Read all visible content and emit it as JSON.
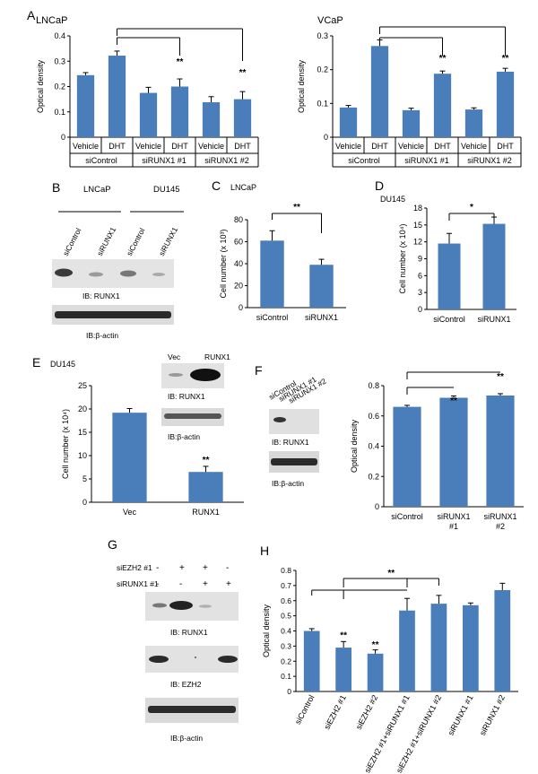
{
  "panels": {
    "A": {
      "letter": "A",
      "left": {
        "title": "LNCaP",
        "ylabel": "Optical density",
        "ylim": [
          0,
          0.4
        ],
        "yticks": [
          "0",
          "0.1",
          "0.2",
          "0.3",
          "0.4"
        ],
        "bars": [
          0.245,
          0.322,
          0.175,
          0.2,
          0.138,
          0.15
        ],
        "errors": [
          0.01,
          0.018,
          0.022,
          0.03,
          0.022,
          0.03
        ],
        "xlabels": [
          "Vehicle",
          "DHT",
          "Vehicle",
          "DHT",
          "Vehicle",
          "DHT"
        ],
        "groups": [
          "siControl",
          "siRUNX1 #1",
          "siRUNX1 #2"
        ],
        "sig": [
          "**",
          "**"
        ]
      },
      "right": {
        "title": "VCaP",
        "ylabel": "Optical density",
        "ylim": [
          0,
          0.3
        ],
        "yticks": [
          "0",
          "0.1",
          "0.2",
          "0.3"
        ],
        "bars": [
          0.088,
          0.27,
          0.08,
          0.188,
          0.082,
          0.194
        ],
        "errors": [
          0.006,
          0.018,
          0.006,
          0.008,
          0.005,
          0.01
        ],
        "xlabels": [
          "Vehicle",
          "DHT",
          "Vehicle",
          "DHT",
          "Vehicle",
          "DHT"
        ],
        "groups": [
          "siControl",
          "siRUNX1 #1",
          "siRUNX1 #2"
        ],
        "sig": [
          "**",
          "**"
        ]
      }
    },
    "B": {
      "letter": "B",
      "cell_lines": [
        "LNCaP",
        "DU145"
      ],
      "lanes": [
        "siControl",
        "siRUNX1",
        "siControl",
        "siRUNX1"
      ],
      "ib1": "IB: RUNX1",
      "ib2": "IB:β-actin"
    },
    "C": {
      "letter": "C",
      "title": "LNCaP",
      "ylabel": "Cell number (x 10³)",
      "ylim": [
        0,
        80
      ],
      "yticks": [
        "0",
        "20",
        "40",
        "60",
        "80"
      ],
      "categories": [
        "siControl",
        "siRUNX1"
      ],
      "bars": [
        61,
        39
      ],
      "errors": [
        9,
        5
      ],
      "sig": "**"
    },
    "D": {
      "letter": "D",
      "title": "DU145",
      "ylabel": "Cell number (x 10⁴)",
      "ylim": [
        0,
        18
      ],
      "yticks": [
        "0",
        "3",
        "6",
        "9",
        "12",
        "15",
        "18"
      ],
      "categories": [
        "siControl",
        "siRUNX1"
      ],
      "bars": [
        11.7,
        15.2
      ],
      "errors": [
        1.8,
        1.2
      ],
      "sig": "*"
    },
    "E": {
      "letter": "E",
      "title": "DU145",
      "ylabel": "Cell number (x 10⁴)",
      "ylim": [
        0,
        25
      ],
      "yticks": [
        "0",
        "5",
        "10",
        "15",
        "20",
        "25"
      ],
      "categories": [
        "Vec",
        "RUNX1"
      ],
      "bars": [
        19.2,
        6.5
      ],
      "errors": [
        0.9,
        1.2
      ],
      "sig": "**",
      "blot_lanes": [
        "Vec",
        "RUNX1"
      ],
      "ib1": "IB: RUNX1",
      "ib2": "IB:β-actin"
    },
    "F": {
      "letter": "F",
      "lanes": [
        "siControl",
        "siRUNX1 #1",
        "siRUNX1 #2"
      ],
      "ib1": "IB: RUNX1",
      "ib2": "IB:β-actin",
      "ylabel": "Optical density",
      "ylim": [
        0,
        0.8
      ],
      "yticks": [
        "0",
        "0.2",
        "0.4",
        "0.6",
        "0.8"
      ],
      "categories": [
        [
          "siControl"
        ],
        [
          "siRUNX1",
          "#1"
        ],
        [
          "siRUNX1",
          "#2"
        ]
      ],
      "bars": [
        0.66,
        0.72,
        0.735
      ],
      "errors": [
        0.01,
        0.012,
        0.012
      ],
      "sig": [
        "**",
        "**"
      ]
    },
    "G": {
      "letter": "G",
      "row1_label": "siEZH2 #1",
      "row1": [
        "-",
        "+",
        "+",
        "-"
      ],
      "row2_label": "siRUNX1 #1",
      "row2": [
        "-",
        "-",
        "+",
        "+"
      ],
      "ib1": "IB: RUNX1",
      "ib2": "IB: EZH2",
      "ib3": "IB:β-actin"
    },
    "H": {
      "letter": "H",
      "ylabel": "Optical density",
      "ylim": [
        0,
        0.8
      ],
      "yticks": [
        "0",
        "0.1",
        "0.2",
        "0.3",
        "0.4",
        "0.5",
        "0.6",
        "0.7",
        "0.8"
      ],
      "categories": [
        "siControl",
        "siEZH2 #1",
        "siEZH2 #2",
        "siEZH2 #1+siRUNX1 #1",
        "siEZH2 #1+siRUNX1 #2",
        "siRUNX1 #1",
        "siRUNX1 #2"
      ],
      "bars": [
        0.4,
        0.29,
        0.25,
        0.535,
        0.58,
        0.57,
        0.67
      ],
      "errors": [
        0.015,
        0.04,
        0.025,
        0.08,
        0.055,
        0.015,
        0.045
      ],
      "sig": [
        "**",
        "**",
        "**"
      ]
    }
  },
  "colors": {
    "bar": "#4a7ebb",
    "axis": "#000000"
  }
}
